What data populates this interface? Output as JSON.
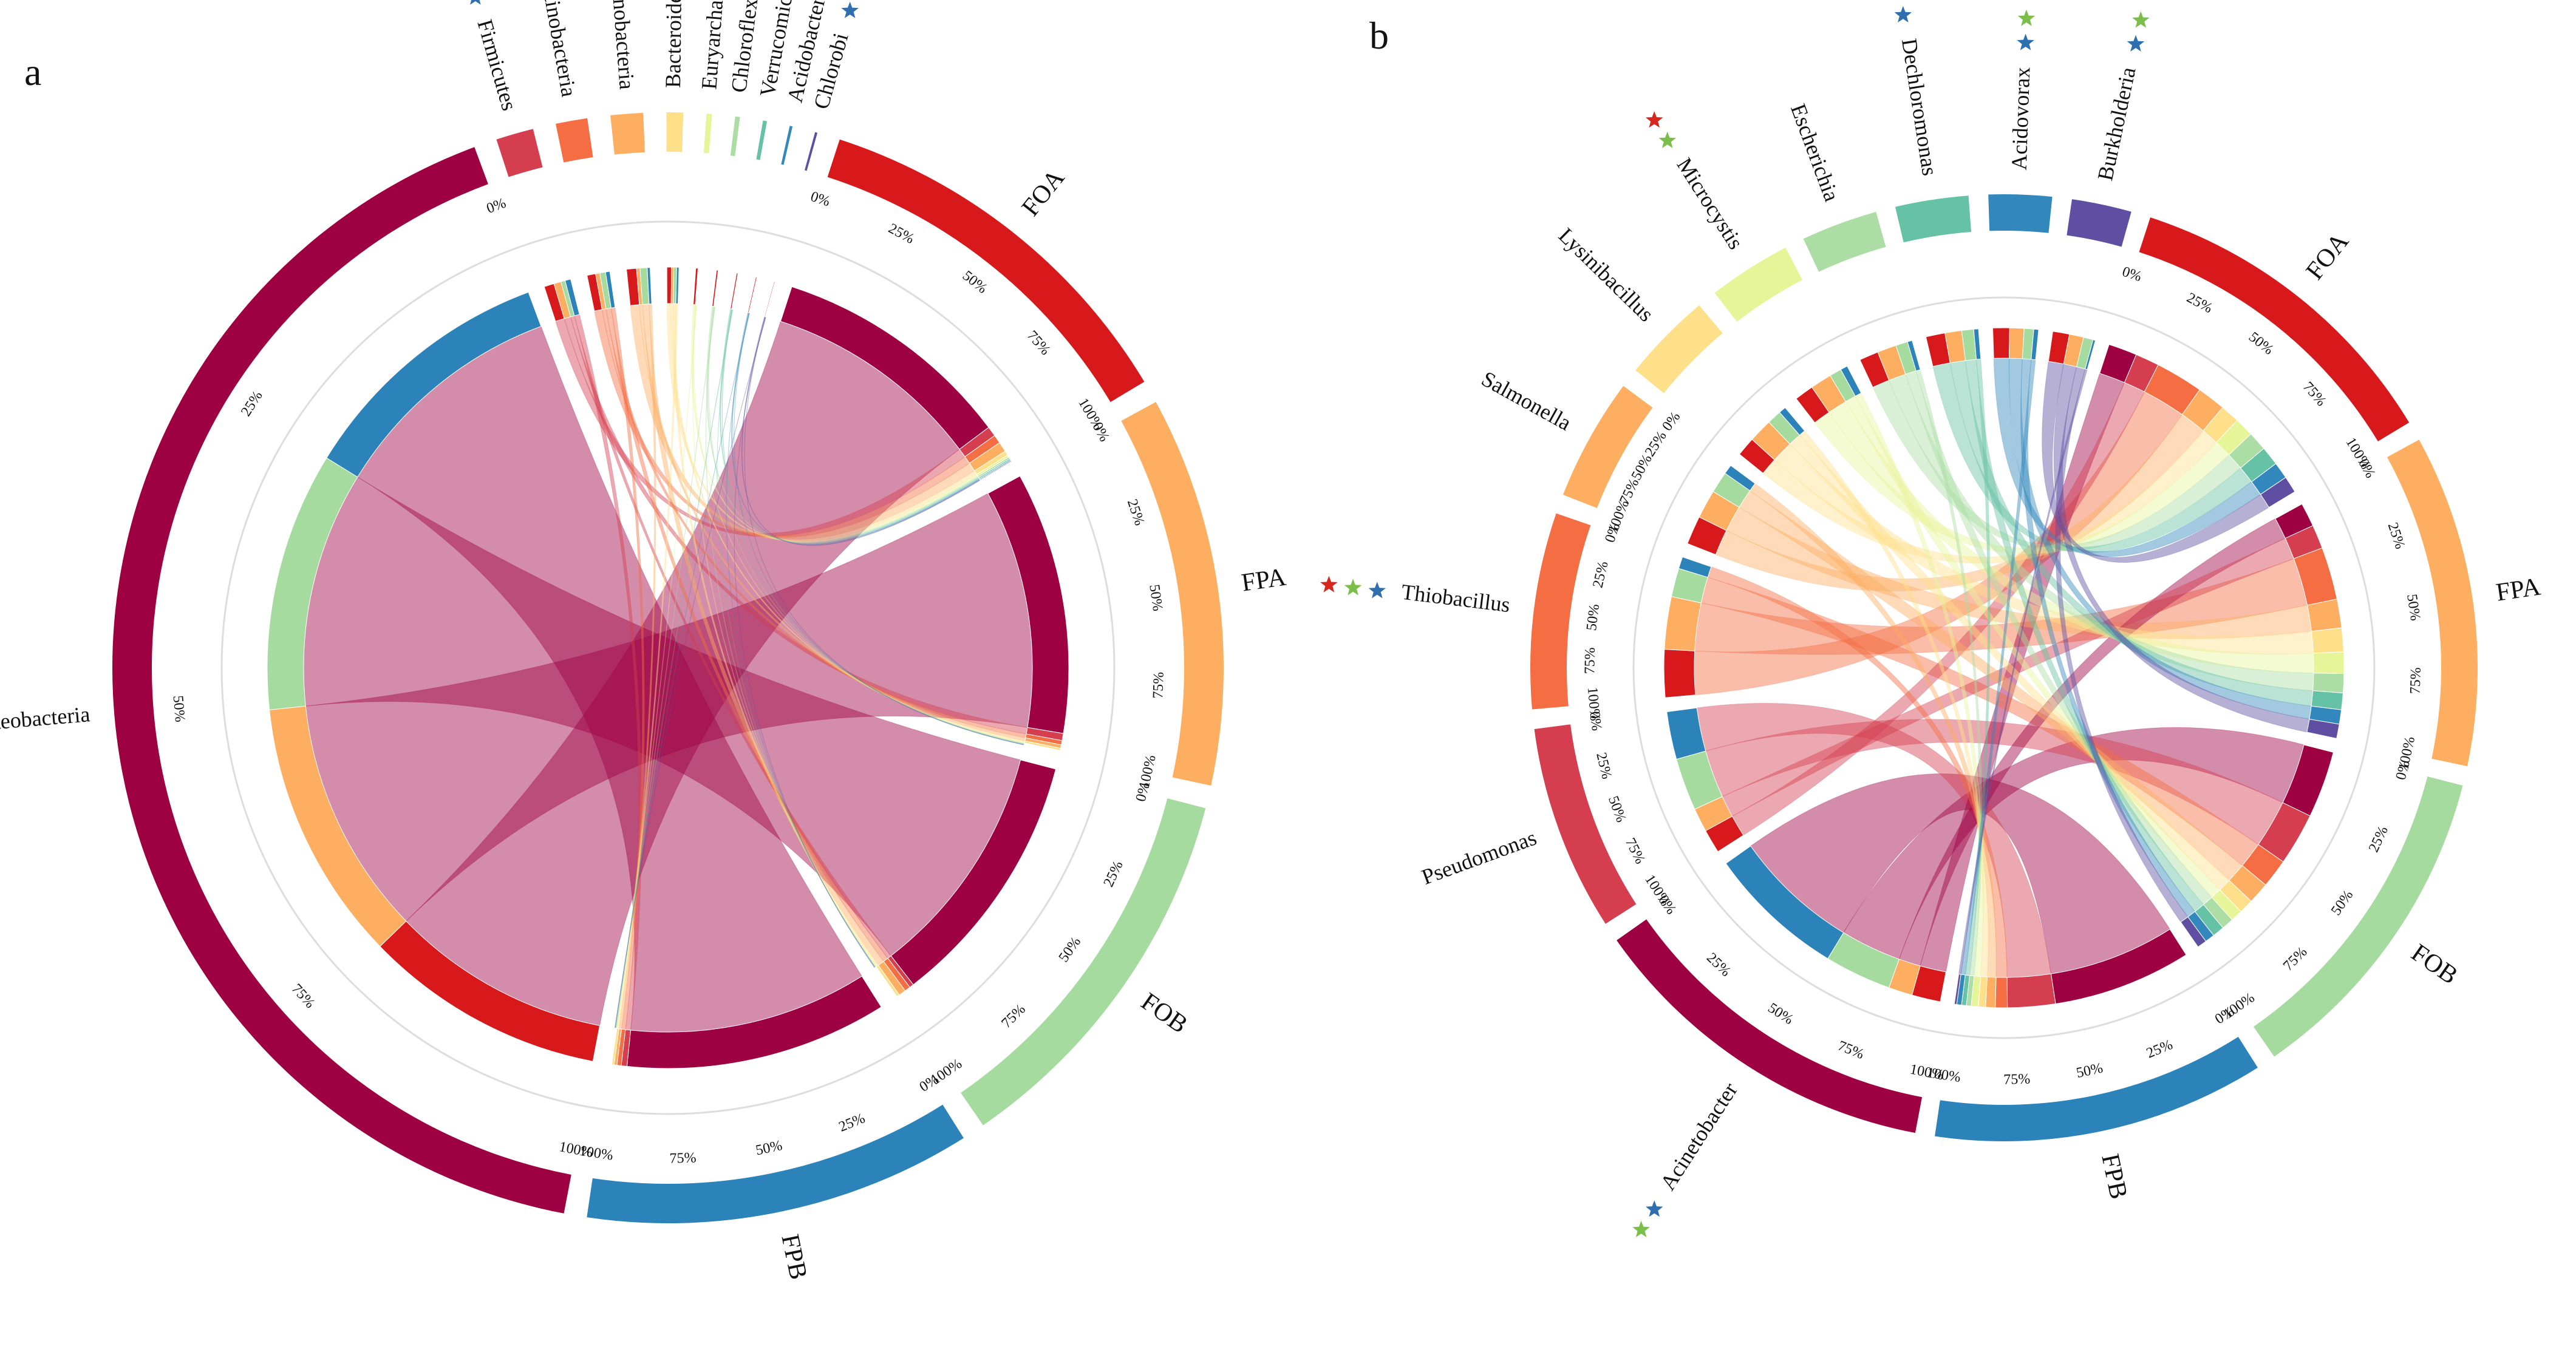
{
  "panels": [
    {
      "letter": "a",
      "chart_data": {
        "type": "chord",
        "groups": [
          "FOA",
          "FPA",
          "FOB",
          "FPB"
        ],
        "members": [
          "Proteobacteria",
          "Firmicutes",
          "Actinobacteria",
          "Cyanobacteria",
          "Bacteroidetes",
          "Euryarchaeota",
          "Chloroflexi",
          "Verrucomicrobia",
          "Acidobacteria",
          "Chlorobi"
        ],
        "ticks": [
          "0%",
          "25%",
          "50%",
          "75%",
          "100%"
        ],
        "matrix": [
          [
            85,
            3.5,
            3,
            3.5,
            1.6,
            0.8,
            0.6,
            0.5,
            0.4,
            0.3
          ],
          [
            92,
            2.5,
            1.5,
            1.2,
            0.8,
            0.2,
            0.2,
            0.2,
            0.1,
            0.1
          ],
          [
            91,
            1.5,
            2,
            2.5,
            1,
            0.2,
            0.2,
            0.1,
            0.1,
            0.1
          ],
          [
            92,
            2,
            1.5,
            1,
            0.8,
            0.2,
            0.2,
            0.2,
            0.1,
            0.1
          ]
        ],
        "stars": {
          "Proteobacteria": [
            "blue",
            "red"
          ],
          "Firmicutes": [
            "blue",
            "green"
          ],
          "Actinobacteria": [
            "blue",
            "green"
          ],
          "Cyanobacteria": [
            "green",
            "red"
          ],
          "Bacteroidetes": [
            "blue",
            "green"
          ],
          "Euryarchaeota": [
            "blue",
            "green"
          ],
          "Chloroflexi": [
            "blue",
            "green"
          ],
          "Verrucomicrobia": [
            "blue",
            "green"
          ],
          "Acidobacteria": [
            "blue",
            "green"
          ],
          "Chlorobi": [
            "blue",
            "green"
          ]
        }
      }
    },
    {
      "letter": "b",
      "chart_data": {
        "type": "chord",
        "groups": [
          "FOA",
          "FPA",
          "FOB",
          "FPB"
        ],
        "members": [
          "Acinetobacter",
          "Pseudomonas",
          "Thiobacillus",
          "Salmonella",
          "Lysinibacillus",
          "Microcystis",
          "Escherichia",
          "Dechloromonas",
          "Acidovorax",
          "Burkholderia"
        ],
        "ticks": [
          "0%",
          "25%",
          "50%",
          "75%",
          "100%"
        ],
        "matrix": [
          [
            12,
            10,
            20,
            12,
            8,
            8,
            8,
            8,
            7,
            7
          ],
          [
            10,
            10,
            22,
            12,
            10,
            9,
            8,
            7,
            6,
            6
          ],
          [
            28,
            22,
            12,
            9,
            6,
            5,
            5,
            5,
            4,
            4
          ],
          [
            58,
            20,
            5,
            4,
            3,
            3,
            2,
            2,
            2,
            1
          ]
        ],
        "stars": {
          "Acinetobacter": [
            "blue",
            "green"
          ],
          "Pseudomonas": [],
          "Thiobacillus": [
            "blue",
            "green",
            "red"
          ],
          "Salmonella": [],
          "Lysinibacillus": [],
          "Microcystis": [
            "green",
            "red"
          ],
          "Escherichia": [],
          "Dechloromonas": [
            "blue",
            "green",
            "red"
          ],
          "Acidovorax": [
            "blue",
            "green"
          ],
          "Burkholderia": [
            "blue",
            "green"
          ]
        }
      }
    }
  ],
  "colors": {
    "groups": {
      "FOA": "#d7191c",
      "FPA": "#fdae61",
      "FOB": "#a6dba0",
      "FPB": "#2b83ba"
    },
    "members_a": [
      "#9e0142",
      "#d53e4f",
      "#f46d43",
      "#fdae61",
      "#fee08b",
      "#e6f598",
      "#abdda4",
      "#66c2a5",
      "#3288bd",
      "#5e4fa2"
    ],
    "members_b": [
      "#9e0142",
      "#d53e4f",
      "#f46d43",
      "#fdae61",
      "#fee08b",
      "#e6f598",
      "#abdda4",
      "#66c2a5",
      "#3288bd",
      "#5e4fa2"
    ],
    "stars": {
      "blue": "#2f6fb0",
      "green": "#7bbf4a",
      "red": "#d7261e"
    }
  }
}
